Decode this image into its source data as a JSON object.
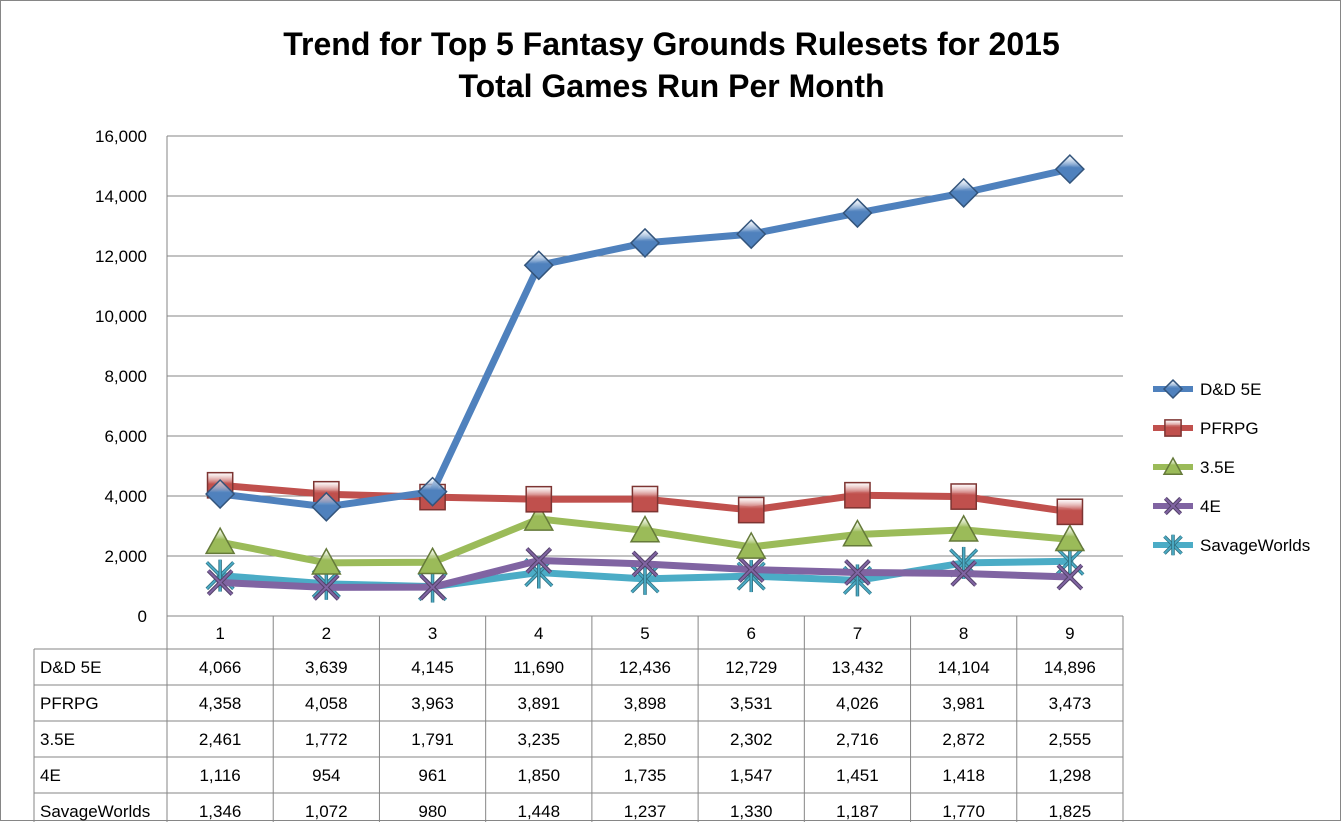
{
  "chart_data": {
    "type": "line",
    "title": "Trend for Top 5 Fantasy Grounds Rulesets for 2015",
    "subtitle": "Total Games Run Per Month",
    "categories": [
      "1",
      "2",
      "3",
      "4",
      "5",
      "6",
      "7",
      "8",
      "9"
    ],
    "ylim": [
      0,
      16000
    ],
    "yticks": [
      "0",
      "2,000",
      "4,000",
      "6,000",
      "8,000",
      "10,000",
      "12,000",
      "14,000",
      "16,000"
    ],
    "grid": true,
    "legend_position": "right",
    "series": [
      {
        "name": "D&D 5E",
        "marker": "diamond",
        "color": "#4f81bd",
        "values": [
          4066,
          3639,
          4145,
          11690,
          12436,
          12729,
          13432,
          14104,
          14896
        ],
        "labels": [
          "4,066",
          "3,639",
          "4,145",
          "11,690",
          "12,436",
          "12,729",
          "13,432",
          "14,104",
          "14,896"
        ]
      },
      {
        "name": "PFRPG",
        "marker": "square",
        "color": "#c0504d",
        "values": [
          4358,
          4058,
          3963,
          3891,
          3898,
          3531,
          4026,
          3981,
          3473
        ],
        "labels": [
          "4,358",
          "4,058",
          "3,963",
          "3,891",
          "3,898",
          "3,531",
          "4,026",
          "3,981",
          "3,473"
        ]
      },
      {
        "name": "3.5E",
        "marker": "triangle",
        "color": "#9bbb59",
        "values": [
          2461,
          1772,
          1791,
          3235,
          2850,
          2302,
          2716,
          2872,
          2555
        ],
        "labels": [
          "2,461",
          "1,772",
          "1,791",
          "3,235",
          "2,850",
          "2,302",
          "2,716",
          "2,872",
          "2,555"
        ]
      },
      {
        "name": "4E",
        "marker": "x",
        "color": "#8064a2",
        "values": [
          1116,
          954,
          961,
          1850,
          1735,
          1547,
          1451,
          1418,
          1298
        ],
        "labels": [
          "1,116",
          "954",
          "961",
          "1,850",
          "1,735",
          "1,547",
          "1,451",
          "1,418",
          "1,298"
        ]
      },
      {
        "name": "SavageWorlds",
        "marker": "star",
        "color": "#4bacc6",
        "values": [
          1346,
          1072,
          980,
          1448,
          1237,
          1330,
          1187,
          1770,
          1825
        ],
        "labels": [
          "1,346",
          "1,072",
          "980",
          "1,448",
          "1,237",
          "1,330",
          "1,187",
          "1,770",
          "1,825"
        ]
      }
    ]
  }
}
